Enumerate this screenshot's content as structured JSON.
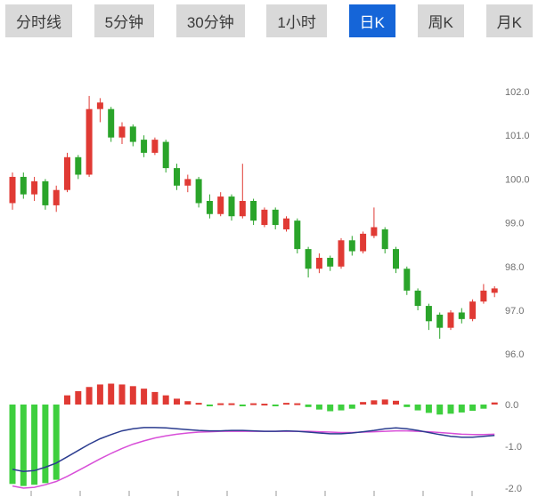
{
  "tabs": [
    {
      "label": "分时线",
      "active": false
    },
    {
      "label": "5分钟",
      "active": false
    },
    {
      "label": "30分钟",
      "active": false
    },
    {
      "label": "1小时",
      "active": false
    },
    {
      "label": "日K",
      "active": true
    },
    {
      "label": "周K",
      "active": false
    },
    {
      "label": "月K",
      "active": false
    }
  ],
  "chart_data": {
    "type": "candlestick",
    "title": "",
    "subtitle": "daily K-line with MACD sub-panel",
    "price_axis": {
      "labels": [
        "102.0",
        "101.0",
        "100.0",
        "99.0",
        "98.0",
        "97.0",
        "96.0"
      ],
      "values": [
        102,
        101,
        100,
        99,
        98,
        97,
        96
      ],
      "range": [
        95.8,
        102.9
      ],
      "position": "right"
    },
    "macd_axis": {
      "labels": [
        "0.0",
        "-1.0",
        "-2.0"
      ],
      "values": [
        0,
        -1,
        -2
      ],
      "range": [
        -2.2,
        0.6
      ],
      "position": "right"
    },
    "grid": false,
    "candles": [
      [
        99.45,
        100.15,
        99.3,
        100.05
      ],
      [
        100.05,
        100.15,
        99.55,
        99.65
      ],
      [
        99.65,
        100.05,
        99.5,
        99.95
      ],
      [
        99.95,
        100.0,
        99.3,
        99.4
      ],
      [
        99.4,
        99.85,
        99.25,
        99.75
      ],
      [
        99.75,
        100.6,
        99.7,
        100.5
      ],
      [
        100.5,
        100.55,
        100.0,
        100.1
      ],
      [
        100.1,
        101.9,
        100.05,
        101.6
      ],
      [
        101.6,
        101.85,
        101.3,
        101.75
      ],
      [
        101.6,
        101.65,
        100.85,
        100.95
      ],
      [
        100.95,
        101.3,
        100.8,
        101.2
      ],
      [
        101.2,
        101.25,
        100.75,
        100.85
      ],
      [
        100.9,
        101.0,
        100.5,
        100.6
      ],
      [
        100.6,
        100.95,
        100.55,
        100.9
      ],
      [
        100.85,
        100.9,
        100.15,
        100.25
      ],
      [
        100.25,
        100.35,
        99.75,
        99.85
      ],
      [
        99.85,
        100.1,
        99.7,
        100.0
      ],
      [
        100.0,
        100.05,
        99.35,
        99.45
      ],
      [
        99.5,
        99.65,
        99.1,
        99.2
      ],
      [
        99.2,
        99.7,
        99.15,
        99.6
      ],
      [
        99.6,
        99.65,
        99.05,
        99.15
      ],
      [
        99.15,
        100.35,
        99.1,
        99.5
      ],
      [
        99.5,
        99.55,
        98.95,
        99.05
      ],
      [
        98.95,
        99.35,
        98.9,
        99.3
      ],
      [
        99.3,
        99.35,
        98.85,
        98.95
      ],
      [
        98.85,
        99.15,
        98.8,
        99.1
      ],
      [
        99.05,
        99.1,
        98.3,
        98.4
      ],
      [
        98.4,
        98.45,
        97.75,
        97.95
      ],
      [
        97.95,
        98.3,
        97.85,
        98.2
      ],
      [
        98.2,
        98.25,
        97.9,
        98.0
      ],
      [
        98.0,
        98.65,
        97.95,
        98.6
      ],
      [
        98.6,
        98.7,
        98.25,
        98.35
      ],
      [
        98.35,
        98.8,
        98.3,
        98.75
      ],
      [
        98.7,
        99.35,
        98.65,
        98.9
      ],
      [
        98.85,
        98.9,
        98.3,
        98.4
      ],
      [
        98.4,
        98.45,
        97.85,
        97.95
      ],
      [
        97.95,
        98.0,
        97.35,
        97.45
      ],
      [
        97.45,
        97.5,
        97.0,
        97.1
      ],
      [
        97.1,
        97.15,
        96.55,
        96.75
      ],
      [
        96.9,
        96.95,
        96.35,
        96.6
      ],
      [
        96.6,
        97.0,
        96.55,
        96.95
      ],
      [
        96.95,
        97.05,
        96.7,
        96.8
      ],
      [
        96.8,
        97.25,
        96.75,
        97.2
      ],
      [
        97.2,
        97.6,
        97.15,
        97.45
      ],
      [
        97.4,
        97.55,
        97.3,
        97.5
      ]
    ],
    "macd_hist": [
      -1.9,
      -1.95,
      -1.92,
      -1.88,
      -1.8,
      0.22,
      0.32,
      0.42,
      0.48,
      0.5,
      0.48,
      0.44,
      0.38,
      0.3,
      0.22,
      0.14,
      0.08,
      0.04,
      -0.03,
      0.03,
      0.03,
      -0.04,
      0.03,
      0.02,
      -0.03,
      0.04,
      0.03,
      -0.06,
      -0.12,
      -0.16,
      -0.14,
      -0.1,
      0.06,
      0.1,
      0.12,
      0.09,
      -0.06,
      -0.14,
      -0.2,
      -0.24,
      -0.22,
      -0.19,
      -0.15,
      -0.1,
      0.05
    ],
    "dif_line": [
      -1.55,
      -1.6,
      -1.58,
      -1.5,
      -1.4,
      -1.25,
      -1.1,
      -0.95,
      -0.82,
      -0.72,
      -0.63,
      -0.58,
      -0.55,
      -0.55,
      -0.56,
      -0.58,
      -0.6,
      -0.62,
      -0.63,
      -0.63,
      -0.62,
      -0.62,
      -0.63,
      -0.64,
      -0.64,
      -0.63,
      -0.64,
      -0.66,
      -0.68,
      -0.7,
      -0.7,
      -0.68,
      -0.65,
      -0.62,
      -0.58,
      -0.56,
      -0.58,
      -0.62,
      -0.67,
      -0.72,
      -0.76,
      -0.78,
      -0.78,
      -0.76,
      -0.74
    ],
    "dea_line": [
      -1.95,
      -2.0,
      -1.98,
      -1.92,
      -1.84,
      -1.72,
      -1.58,
      -1.44,
      -1.3,
      -1.17,
      -1.05,
      -0.95,
      -0.87,
      -0.8,
      -0.75,
      -0.71,
      -0.68,
      -0.66,
      -0.65,
      -0.64,
      -0.64,
      -0.64,
      -0.64,
      -0.64,
      -0.64,
      -0.64,
      -0.64,
      -0.64,
      -0.65,
      -0.66,
      -0.67,
      -0.67,
      -0.66,
      -0.65,
      -0.64,
      -0.63,
      -0.63,
      -0.64,
      -0.65,
      -0.67,
      -0.69,
      -0.71,
      -0.72,
      -0.72,
      -0.71
    ],
    "x_ticks": [
      35,
      90,
      145,
      200,
      255,
      310,
      365,
      420,
      475,
      530
    ],
    "colors": {
      "up": "#e03a34",
      "down": "#2aa42a",
      "macd_up": "#e03a34",
      "macd_down": "#3ecf3e",
      "dif": "#2b3c8f",
      "dea": "#d84fd8",
      "axis_text": "#707070",
      "tick": "#999999",
      "tab_active": "#1565d8"
    }
  }
}
